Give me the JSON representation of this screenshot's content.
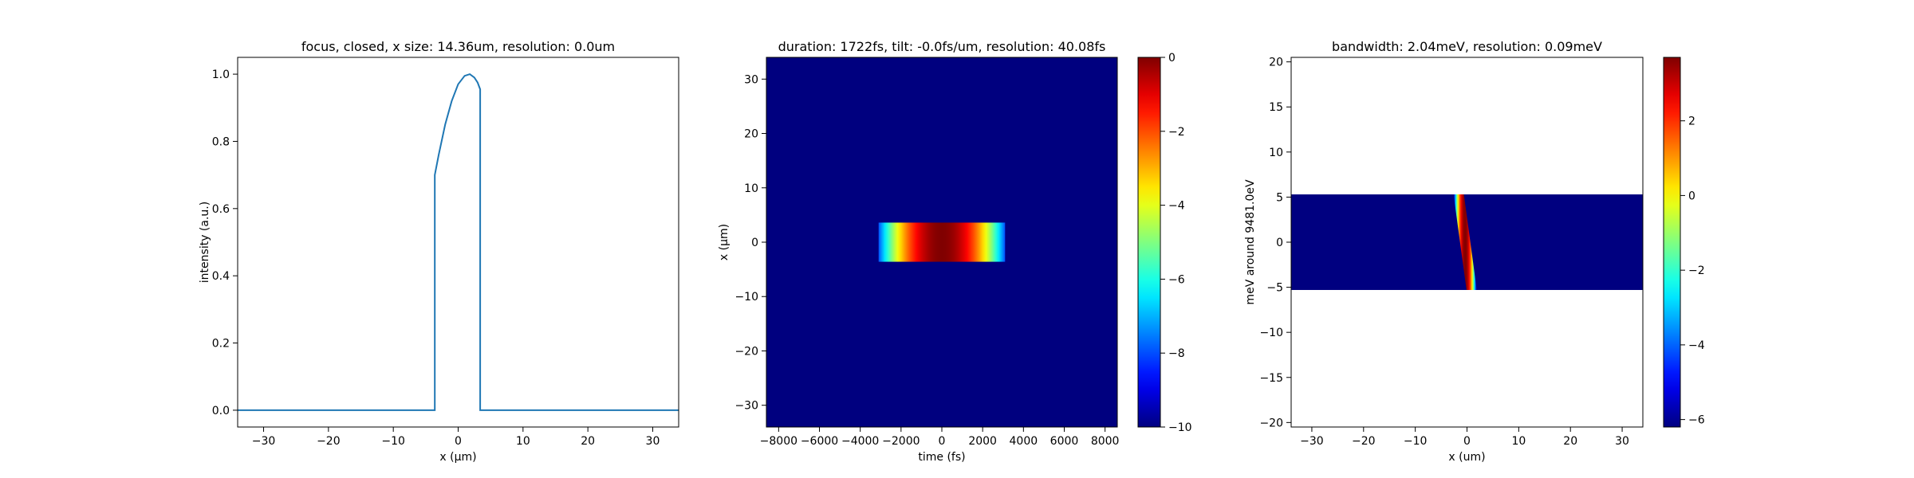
{
  "chart_data": [
    {
      "type": "line",
      "title": "focus, closed, x size: 14.36um, resolution: 0.0um",
      "xlabel": "x (μm)",
      "ylabel": "intensity (a.u.)",
      "xlim": [
        -34,
        34
      ],
      "ylim": [
        -0.05,
        1.05
      ],
      "xticks": [
        -30,
        -20,
        -10,
        0,
        10,
        20,
        30
      ],
      "yticks": [
        0.0,
        0.2,
        0.4,
        0.6,
        0.8,
        1.0
      ],
      "ytick_labels": [
        "0.0",
        "0.2",
        "0.4",
        "0.6",
        "0.8",
        "1.0"
      ],
      "series": [
        {
          "color": "#1f77b4",
          "x": [
            -34,
            -3.6,
            -3.6,
            -3.0,
            -2.0,
            -1.0,
            0.0,
            1.0,
            1.8,
            2.5,
            3.0,
            3.4,
            3.4,
            34
          ],
          "y": [
            0,
            0,
            0.7,
            0.76,
            0.85,
            0.92,
            0.97,
            0.995,
            1.0,
            0.99,
            0.975,
            0.955,
            0,
            0
          ]
        }
      ]
    },
    {
      "type": "heatmap",
      "title": "duration: 1722fs, tilt: -0.0fs/um, resolution: 40.08fs",
      "xlabel": "time (fs)",
      "ylabel": "x (μm)",
      "xlim": [
        -8600,
        8600
      ],
      "ylim": [
        -34,
        34
      ],
      "xticks": [
        -8000,
        -6000,
        -4000,
        -2000,
        0,
        2000,
        4000,
        6000,
        8000
      ],
      "yticks": [
        -30,
        -20,
        -10,
        0,
        10,
        20,
        30
      ],
      "colormap": "jet",
      "background_value": -10,
      "pulse": {
        "t_center": 0,
        "t_halfwidth": 3100,
        "x_halfwidth": 3.6,
        "peak": 0,
        "edge": -8
      },
      "colorbar": {
        "min": -10,
        "max": 0,
        "ticks": [
          0,
          -2,
          -4,
          -6,
          -8,
          -10
        ]
      }
    },
    {
      "type": "heatmap",
      "title": "bandwidth: 2.04meV, resolution: 0.09meV",
      "xlabel": "x (um)",
      "ylabel": "meV around 9481.0eV",
      "xlim": [
        -34,
        34
      ],
      "ylim": [
        -20.5,
        20.5
      ],
      "xticks": [
        -30,
        -20,
        -10,
        0,
        10,
        20,
        30
      ],
      "yticks": [
        -20,
        -15,
        -10,
        -5,
        0,
        5,
        10,
        15,
        20
      ],
      "colormap": "jet",
      "data_extent_y": [
        -5.3,
        5.3
      ],
      "background_value": -6.2,
      "streak": {
        "x_top": -1.6,
        "x_bottom": 0.9,
        "halfwidth": 1.0,
        "peak": 3.7
      },
      "colorbar": {
        "min": -6.2,
        "max": 3.7,
        "ticks": [
          2,
          0,
          -2,
          -4,
          -6
        ]
      }
    }
  ]
}
